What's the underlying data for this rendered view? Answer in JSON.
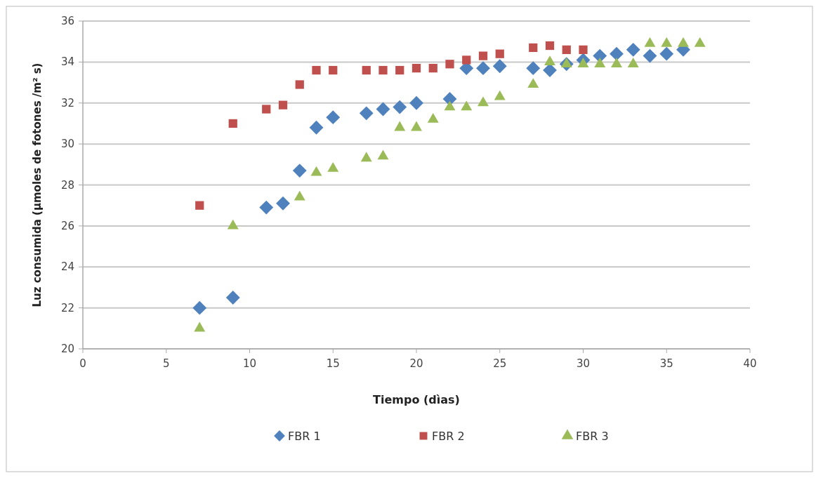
{
  "chart_data": {
    "type": "scatter",
    "xlabel": "Tiempo (dìas)",
    "ylabel": "Luz consumida (µmoles de fotones /m² s)",
    "xlim": [
      0,
      40
    ],
    "xticks": [
      0,
      5,
      10,
      15,
      20,
      25,
      30,
      35,
      40
    ],
    "ylim": [
      20,
      36
    ],
    "yticks": [
      20,
      22,
      24,
      26,
      28,
      30,
      32,
      34,
      36
    ],
    "grid": "y",
    "legend": "bottom",
    "series": [
      {
        "name": "FBR 1",
        "color": "#4f81bd",
        "marker": "diamond",
        "x": [
          7,
          9,
          11,
          12,
          13,
          14,
          15,
          17,
          18,
          19,
          20,
          22,
          23,
          24,
          25,
          27,
          28,
          29,
          30,
          31,
          32,
          33,
          34,
          35,
          36
        ],
        "values": [
          22.0,
          22.5,
          26.9,
          27.1,
          28.7,
          30.8,
          31.3,
          31.5,
          31.7,
          31.8,
          32.0,
          32.2,
          33.7,
          33.7,
          33.8,
          33.7,
          33.6,
          33.9,
          34.1,
          34.3,
          34.4,
          34.6,
          34.3,
          34.4,
          34.6
        ]
      },
      {
        "name": "FBR 2",
        "color": "#c0504d",
        "marker": "square",
        "x": [
          7,
          9,
          11,
          12,
          13,
          14,
          15,
          17,
          18,
          19,
          20,
          21,
          22,
          23,
          24,
          25,
          27,
          28,
          29,
          30
        ],
        "values": [
          27.0,
          31.0,
          31.7,
          31.9,
          32.9,
          33.6,
          33.6,
          33.6,
          33.6,
          33.6,
          33.7,
          33.7,
          33.9,
          34.1,
          34.3,
          34.4,
          34.7,
          34.8,
          34.6,
          34.6
        ]
      },
      {
        "name": "FBR 3",
        "color": "#9bbb59",
        "marker": "triangle",
        "x": [
          7,
          9,
          13,
          14,
          15,
          17,
          18,
          19,
          20,
          21,
          22,
          23,
          24,
          25,
          27,
          28,
          29,
          30,
          31,
          32,
          33,
          34,
          35,
          36,
          37
        ],
        "values": [
          21.0,
          26.0,
          27.4,
          28.6,
          28.8,
          29.3,
          29.4,
          30.8,
          30.8,
          31.2,
          31.8,
          31.8,
          32.0,
          32.3,
          32.9,
          34.0,
          33.9,
          33.9,
          33.9,
          33.9,
          33.9,
          34.9,
          34.9,
          34.9,
          34.9
        ]
      }
    ]
  }
}
